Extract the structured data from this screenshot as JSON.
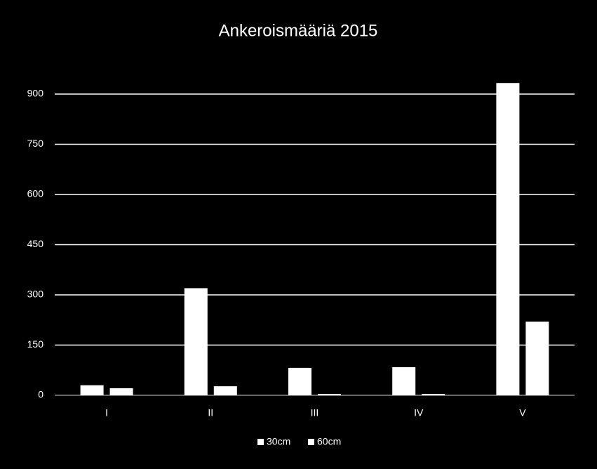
{
  "chart_data": {
    "type": "bar",
    "title": "Ankeroismääriä 2015",
    "categories": [
      "I",
      "II",
      "III",
      "IV",
      "V"
    ],
    "series": [
      {
        "name": "30cm",
        "color": "#ffffff",
        "values": [
          30,
          320,
          82,
          84,
          933
        ]
      },
      {
        "name": "60cm",
        "color": "#ffffff",
        "values": [
          21,
          27,
          4,
          4,
          220
        ]
      }
    ],
    "ylim": [
      0,
      1000
    ],
    "yticks": [
      0,
      150,
      300,
      450,
      600,
      750,
      900
    ],
    "grid": true,
    "legend": "bottom"
  }
}
